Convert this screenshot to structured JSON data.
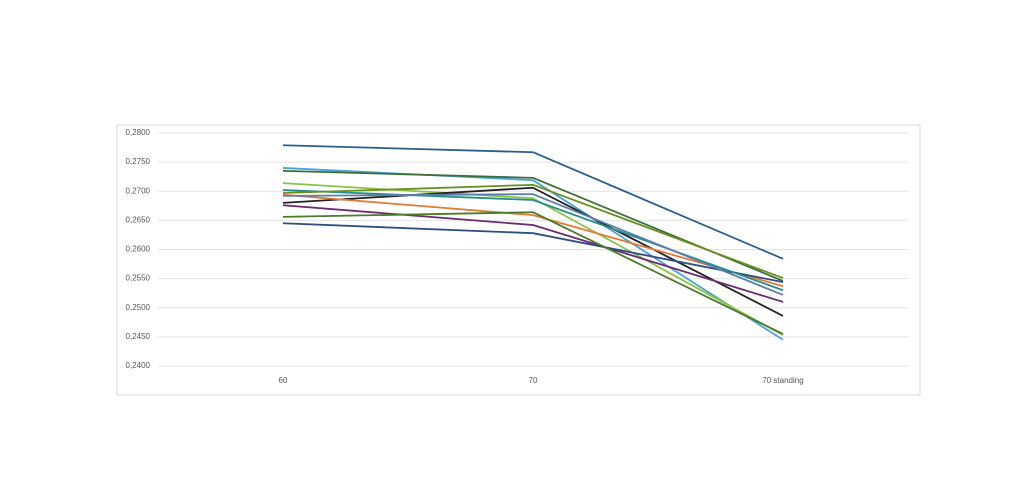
{
  "chart_data": {
    "type": "line",
    "categories": [
      "60",
      "70",
      "70 standing"
    ],
    "series": [
      {
        "color": "#2e5e8a",
        "values": [
          0.2779,
          0.2767,
          0.2584
        ]
      },
      {
        "color": "#4aa3d8",
        "values": [
          0.274,
          0.2719,
          0.2445
        ]
      },
      {
        "color": "#3c6e3a",
        "values": [
          0.2735,
          0.2723,
          0.2546
        ]
      },
      {
        "color": "#8bc34a",
        "values": [
          0.2714,
          0.2688,
          0.2453
        ]
      },
      {
        "color": "#222222",
        "values": [
          0.268,
          0.2706,
          0.2486
        ]
      },
      {
        "color": "#e07b39",
        "values": [
          0.2694,
          0.2659,
          0.2537
        ]
      },
      {
        "color": "#6a2c70",
        "values": [
          0.2676,
          0.2642,
          0.251
        ]
      },
      {
        "color": "#2f4f7f",
        "values": [
          0.2645,
          0.2628,
          0.2544
        ]
      },
      {
        "color": "#4f7a28",
        "values": [
          0.2656,
          0.2664,
          0.2455
        ]
      },
      {
        "color": "#2a8c8c",
        "values": [
          0.2702,
          0.2685,
          0.253
        ]
      },
      {
        "color": "#5b7fa6",
        "values": [
          0.2692,
          0.2695,
          0.2522
        ]
      },
      {
        "color": "#6b8e23",
        "values": [
          0.2697,
          0.2711,
          0.2551
        ]
      }
    ],
    "ylim": [
      0.24,
      0.28
    ],
    "yticks": [
      {
        "value": 0.24,
        "label": "0,2400"
      },
      {
        "value": 0.245,
        "label": "0,2450"
      },
      {
        "value": 0.25,
        "label": "0,2500"
      },
      {
        "value": 0.255,
        "label": "0,2550"
      },
      {
        "value": 0.26,
        "label": "0,2600"
      },
      {
        "value": 0.265,
        "label": "0,2650"
      },
      {
        "value": 0.27,
        "label": "0,2700"
      },
      {
        "value": 0.275,
        "label": "0,2750"
      },
      {
        "value": 0.28,
        "label": "0,2800"
      }
    ],
    "grid": true
  }
}
